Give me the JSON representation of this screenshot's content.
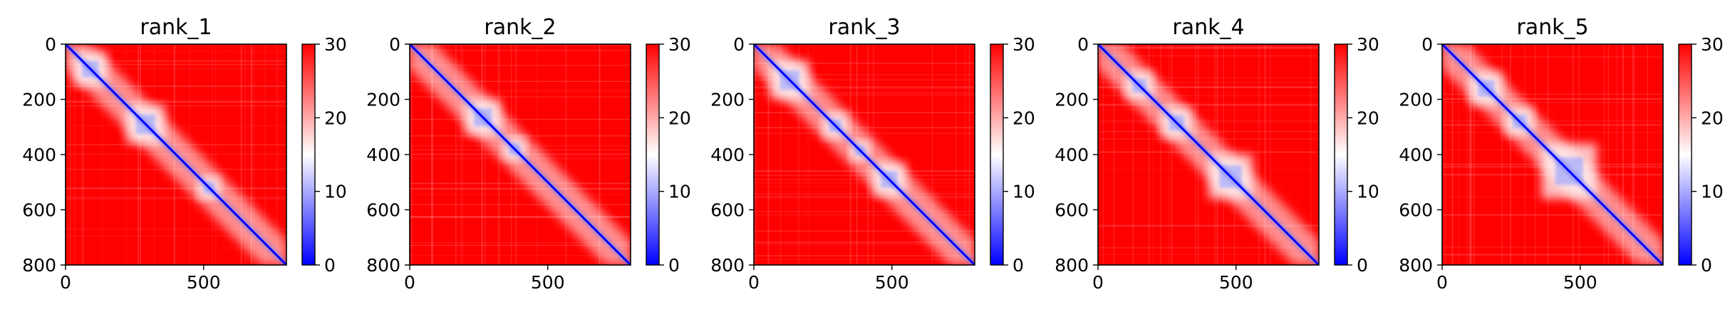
{
  "figure": {
    "colormap": {
      "name": "bwr",
      "low": "#0000ff",
      "mid": "#ffffff",
      "high": "#ff0000"
    },
    "background": "#ffffff"
  },
  "chart_data": [
    {
      "type": "heatmap",
      "title": "rank_1",
      "xlim": [
        0,
        800
      ],
      "ylim": [
        800,
        0
      ],
      "xticks": [
        0,
        500
      ],
      "yticks": [
        0,
        200,
        400,
        600,
        800
      ],
      "colorbar": {
        "range": [
          0,
          30
        ],
        "ticks": [
          0,
          10,
          20,
          30
        ]
      },
      "matrix_size": 800,
      "blue_diagonal": true,
      "low_value_regions": [
        {
          "x": [
            30,
            150
          ],
          "y": [
            30,
            150
          ]
        },
        {
          "x": [
            220,
            360
          ],
          "y": [
            220,
            360
          ]
        },
        {
          "x": [
            480,
            560
          ],
          "y": [
            480,
            560
          ]
        }
      ]
    },
    {
      "type": "heatmap",
      "title": "rank_2",
      "xlim": [
        0,
        800
      ],
      "ylim": [
        800,
        0
      ],
      "xticks": [
        0,
        500
      ],
      "yticks": [
        0,
        200,
        400,
        600,
        800
      ],
      "colorbar": {
        "range": [
          0,
          30
        ],
        "ticks": [
          0,
          10,
          20,
          30
        ]
      },
      "matrix_size": 800,
      "blue_diagonal": true,
      "low_value_regions": [
        {
          "x": [
            200,
            330
          ],
          "y": [
            200,
            330
          ]
        },
        {
          "x": [
            340,
            420
          ],
          "y": [
            340,
            420
          ]
        }
      ]
    },
    {
      "type": "heatmap",
      "title": "rank_3",
      "xlim": [
        0,
        800
      ],
      "ylim": [
        800,
        0
      ],
      "xticks": [
        0,
        500
      ],
      "yticks": [
        0,
        200,
        400,
        600,
        800
      ],
      "colorbar": {
        "range": [
          0,
          30
        ],
        "ticks": [
          0,
          10,
          20,
          30
        ]
      },
      "matrix_size": 800,
      "blue_diagonal": true,
      "low_value_regions": [
        {
          "x": [
            60,
            200
          ],
          "y": [
            60,
            200
          ]
        },
        {
          "x": [
            250,
            340
          ],
          "y": [
            250,
            340
          ]
        },
        {
          "x": [
            350,
            420
          ],
          "y": [
            350,
            420
          ]
        },
        {
          "x": [
            430,
            550
          ],
          "y": [
            430,
            550
          ]
        }
      ]
    },
    {
      "type": "heatmap",
      "title": "rank_4",
      "xlim": [
        0,
        800
      ],
      "ylim": [
        800,
        0
      ],
      "xticks": [
        0,
        500
      ],
      "yticks": [
        0,
        200,
        400,
        600,
        800
      ],
      "colorbar": {
        "range": [
          0,
          30
        ],
        "ticks": [
          0,
          10,
          20,
          30
        ]
      },
      "matrix_size": 800,
      "blue_diagonal": true,
      "low_value_regions": [
        {
          "x": [
            100,
            200
          ],
          "y": [
            100,
            200
          ]
        },
        {
          "x": [
            230,
            340
          ],
          "y": [
            230,
            340
          ]
        },
        {
          "x": [
            400,
            560
          ],
          "y": [
            400,
            560
          ]
        }
      ]
    },
    {
      "type": "heatmap",
      "title": "rank_5",
      "xlim": [
        0,
        800
      ],
      "ylim": [
        800,
        0
      ],
      "xticks": [
        0,
        500
      ],
      "yticks": [
        0,
        200,
        400,
        600,
        800
      ],
      "colorbar": {
        "range": [
          0,
          30
        ],
        "ticks": [
          0,
          10,
          20,
          30
        ]
      },
      "matrix_size": 800,
      "blue_diagonal": true,
      "low_value_regions": [
        {
          "x": [
            100,
            220
          ],
          "y": [
            100,
            220
          ]
        },
        {
          "x": [
            230,
            330
          ],
          "y": [
            230,
            330
          ]
        },
        {
          "x": [
            360,
            560
          ],
          "y": [
            360,
            560
          ]
        }
      ]
    }
  ]
}
